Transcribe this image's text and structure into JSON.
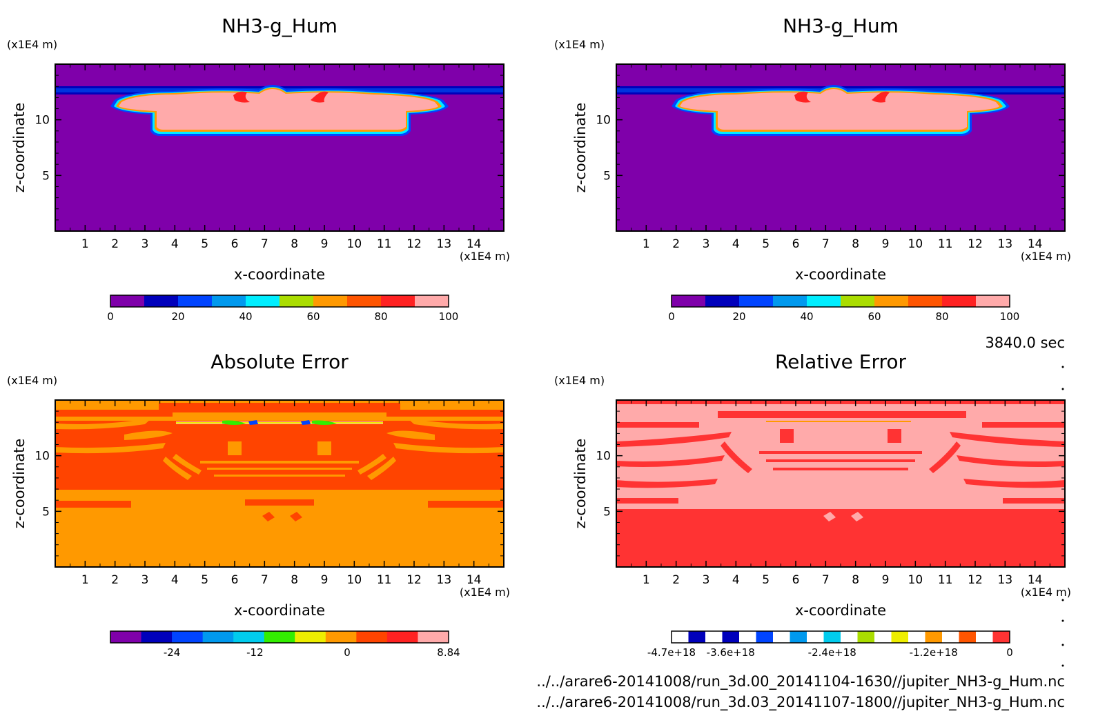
{
  "panels": [
    {
      "title": "NH3-g_Hum",
      "xlabel": "x-coordinate",
      "ylabel": "z-coordinate",
      "xunit": "(x1E4 m)",
      "yunit": "(x1E4 m)",
      "xticks": [
        "1",
        "2",
        "3",
        "4",
        "5",
        "6",
        "7",
        "8",
        "9",
        "10",
        "11",
        "12",
        "13",
        "14"
      ],
      "yticks": [
        "5",
        "10"
      ],
      "colorbar": {
        "colors": [
          "#7f00aa",
          "#0000bb",
          "#0044ff",
          "#0099ee",
          "#00eeff",
          "#aadd00",
          "#ff9900",
          "#ff5500",
          "#ff2222",
          "#ffaaaa"
        ],
        "labels": [
          "0",
          "20",
          "40",
          "60",
          "80",
          "100"
        ]
      }
    },
    {
      "title": "NH3-g_Hum",
      "xlabel": "x-coordinate",
      "ylabel": "z-coordinate",
      "xunit": "(x1E4 m)",
      "yunit": "(x1E4 m)",
      "xticks": [
        "1",
        "2",
        "3",
        "4",
        "5",
        "6",
        "7",
        "8",
        "9",
        "10",
        "11",
        "12",
        "13",
        "14"
      ],
      "yticks": [
        "5",
        "10"
      ],
      "colorbar": {
        "colors": [
          "#7f00aa",
          "#0000bb",
          "#0044ff",
          "#0099ee",
          "#00eeff",
          "#aadd00",
          "#ff9900",
          "#ff5500",
          "#ff2222",
          "#ffaaaa"
        ],
        "labels": [
          "0",
          "20",
          "40",
          "60",
          "80",
          "100"
        ]
      }
    },
    {
      "title": "Absolute Error",
      "xlabel": "x-coordinate",
      "ylabel": "z-coordinate",
      "xunit": "(x1E4 m)",
      "yunit": "(x1E4 m)",
      "xticks": [
        "1",
        "2",
        "3",
        "4",
        "5",
        "6",
        "7",
        "8",
        "9",
        "10",
        "11",
        "12",
        "13",
        "14"
      ],
      "yticks": [
        "5",
        "10"
      ],
      "colorbar": {
        "colors": [
          "#7f00aa",
          "#0000bb",
          "#0044ff",
          "#0099ee",
          "#00ccee",
          "#33ee00",
          "#eeee00",
          "#ff9900",
          "#ff4400",
          "#ff2222",
          "#ffaaaa"
        ],
        "labels": [
          "-24",
          "-12",
          "0",
          "8.84"
        ]
      }
    },
    {
      "title": "Relative Error",
      "xlabel": "x-coordinate",
      "ylabel": "z-coordinate",
      "xunit": "(x1E4 m)",
      "yunit": "(x1E4 m)",
      "xticks": [
        "1",
        "2",
        "3",
        "4",
        "5",
        "6",
        "7",
        "8",
        "9",
        "10",
        "11",
        "12",
        "13",
        "14"
      ],
      "yticks": [
        "5",
        "10"
      ],
      "colorbar": {
        "colors": [
          "#ffffff",
          "#0000bb",
          "#ffffff",
          "#0000bb",
          "#ffffff",
          "#0044ff",
          "#ffffff",
          "#0099ee",
          "#ffffff",
          "#00ccee",
          "#ffffff",
          "#aadd00",
          "#ffffff",
          "#eeee00",
          "#ffffff",
          "#ff9900",
          "#ffffff",
          "#ff5500",
          "#ffffff",
          "#ff3333"
        ],
        "labels": [
          "-4.7e+18",
          "-3.6e+18",
          "-2.4e+18",
          "-1.2e+18",
          "0"
        ]
      }
    }
  ],
  "time_label": "3840.0 sec",
  "footer": [
    "../../arare6-20141008/run_3d.00_20141104-1630//jupiter_NH3-g_Hum.nc",
    "../../arare6-20141008/run_3d.03_20141107-1800//jupiter_NH3-g_Hum.nc"
  ],
  "chart_data": [
    {
      "type": "heatmap",
      "title": "NH3-g_Hum",
      "xlabel": "x-coordinate",
      "ylabel": "z-coordinate",
      "xlim": [
        0,
        15
      ],
      "ylim": [
        0,
        15
      ],
      "colorbar_range": [
        0,
        100
      ]
    },
    {
      "type": "heatmap",
      "title": "NH3-g_Hum",
      "xlabel": "x-coordinate",
      "ylabel": "z-coordinate",
      "xlim": [
        0,
        15
      ],
      "ylim": [
        0,
        15
      ],
      "colorbar_range": [
        0,
        100
      ]
    },
    {
      "type": "heatmap",
      "title": "Absolute Error",
      "xlabel": "x-coordinate",
      "ylabel": "z-coordinate",
      "xlim": [
        0,
        15
      ],
      "ylim": [
        0,
        15
      ],
      "colorbar_range": [
        -28,
        8.84
      ]
    },
    {
      "type": "heatmap",
      "title": "Relative Error",
      "xlabel": "x-coordinate",
      "ylabel": "z-coordinate",
      "xlim": [
        0,
        15
      ],
      "ylim": [
        0,
        15
      ],
      "colorbar_range": [
        -4.7e+18,
        0
      ]
    }
  ]
}
